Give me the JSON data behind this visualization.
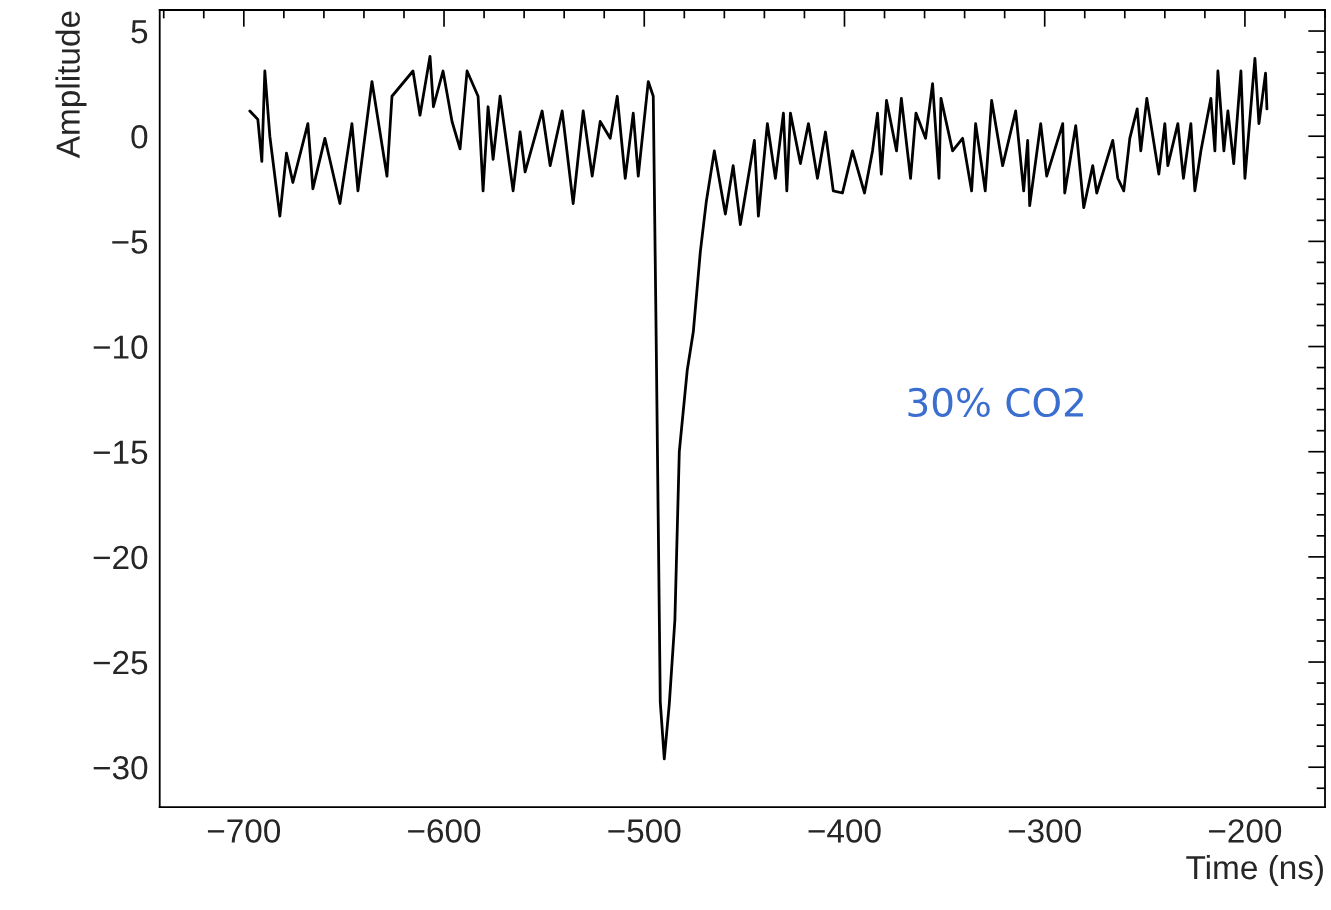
{
  "chart_data": {
    "type": "line",
    "xlabel": "Time (ns)",
    "ylabel": "Amplitude",
    "annotations": [
      "30% CO2"
    ],
    "xlim": [
      -742,
      -160
    ],
    "ylim": [
      -31.9,
      6
    ],
    "xticks": [
      {
        "value": -740,
        "label": null
      },
      {
        "value": -720,
        "label": null
      },
      -700,
      {
        "value": -680,
        "label": null
      },
      {
        "value": -660,
        "label": null
      },
      {
        "value": -640,
        "label": null
      },
      {
        "value": -620,
        "label": null
      },
      -600,
      {
        "value": -580,
        "label": null
      },
      {
        "value": -560,
        "label": null
      },
      {
        "value": -540,
        "label": null
      },
      {
        "value": -520,
        "label": null
      },
      -500,
      {
        "value": -480,
        "label": null
      },
      {
        "value": -460,
        "label": null
      },
      {
        "value": -440,
        "label": null
      },
      {
        "value": -420,
        "label": null
      },
      -400,
      {
        "value": -380,
        "label": null
      },
      {
        "value": -360,
        "label": null
      },
      {
        "value": -340,
        "label": null
      },
      {
        "value": -320,
        "label": null
      },
      -300,
      {
        "value": -280,
        "label": null
      },
      {
        "value": -260,
        "label": null
      },
      {
        "value": -240,
        "label": null
      },
      {
        "value": -220,
        "label": null
      },
      -200,
      {
        "value": -180,
        "label": null
      },
      {
        "value": -160,
        "label": null
      }
    ],
    "yticks": [
      {
        "value": -31,
        "label": null
      },
      -30,
      {
        "value": -29,
        "label": null
      },
      {
        "value": -28,
        "label": null
      },
      {
        "value": -27,
        "label": null
      },
      {
        "value": -26,
        "label": null
      },
      -25,
      {
        "value": -24,
        "label": null
      },
      {
        "value": -23,
        "label": null
      },
      {
        "value": -22,
        "label": null
      },
      {
        "value": -21,
        "label": null
      },
      -20,
      {
        "value": -19,
        "label": null
      },
      {
        "value": -18,
        "label": null
      },
      {
        "value": -17,
        "label": null
      },
      {
        "value": -16,
        "label": null
      },
      -15,
      {
        "value": -14,
        "label": null
      },
      {
        "value": -13,
        "label": null
      },
      {
        "value": -12,
        "label": null
      },
      {
        "value": -11,
        "label": null
      },
      -10,
      {
        "value": -9,
        "label": null
      },
      {
        "value": -8,
        "label": null
      },
      {
        "value": -7,
        "label": null
      },
      {
        "value": -6,
        "label": null
      },
      -5,
      {
        "value": -4,
        "label": null
      },
      {
        "value": -3,
        "label": null
      },
      {
        "value": -2,
        "label": null
      },
      {
        "value": -1,
        "label": null
      },
      0,
      {
        "value": 1,
        "label": null
      },
      {
        "value": 2,
        "label": null
      },
      {
        "value": 3,
        "label": null
      },
      {
        "value": 4,
        "label": null
      },
      5
    ],
    "grid": false,
    "series": [
      {
        "color": "#000000",
        "x": [
          -697,
          -693,
          -691,
          -689.5,
          -687,
          -682,
          -678.7,
          -675.5,
          -668,
          -665.5,
          -659.5,
          -652,
          -646,
          -643,
          -636,
          -628.5,
          -626,
          -615.5,
          -612,
          -607,
          -605.3,
          -600.5,
          -596,
          -592,
          -588.5,
          -583,
          -580.5,
          -578,
          -575.5,
          -572,
          -565.5,
          -562,
          -559.5,
          -551,
          -547,
          -541,
          -535.5,
          -530.5,
          -526,
          -522,
          -517,
          -513.5,
          -509.5,
          -505.5,
          -503,
          -498,
          -495.5,
          -494,
          -492,
          -490,
          -487.5,
          -484.7,
          -482.5,
          -478.5,
          -475.5,
          -472,
          -469,
          -465,
          -459.5,
          -455.6,
          -452,
          -445,
          -443,
          -438.5,
          -434.5,
          -430.5,
          -428.8,
          -427,
          -422,
          -418,
          -413.5,
          -409.5,
          -405.6,
          -401,
          -396,
          -390,
          -386,
          -383.5,
          -381.6,
          -379,
          -374,
          -371.6,
          -367,
          -364.3,
          -359.5,
          -356,
          -352.8,
          -351.8,
          -346,
          -341,
          -336.5,
          -334.5,
          -329.7,
          -326.5,
          -321,
          -314.5,
          -310.5,
          -308.5,
          -307.5,
          -302,
          -299,
          -291,
          -290,
          -284.5,
          -280.5,
          -276,
          -274,
          -266,
          -263.5,
          -260.5,
          -257.5,
          -253.8,
          -252,
          -249,
          -243,
          -240,
          -238.5,
          -233.5,
          -230.7,
          -227,
          -225,
          -222,
          -217,
          -215,
          -213.5,
          -210.5,
          -208.5,
          -205.6,
          -202,
          -200,
          -195,
          -193,
          -189.7,
          -189
        ],
        "values": [
          1.2,
          0.8,
          -1.2,
          3.1,
          0,
          -3.8,
          -0.8,
          -2.2,
          0.6,
          -2.5,
          -0.1,
          -3.2,
          0.6,
          -2.6,
          2.6,
          -1.9,
          1.9,
          3.1,
          1.0,
          3.8,
          1.4,
          3.1,
          0.7,
          -0.6,
          3.1,
          1.9,
          -2.6,
          1.4,
          -1.1,
          1.9,
          -2.6,
          0.2,
          -1.7,
          1.2,
          -1.4,
          1.2,
          -3.2,
          1.2,
          -1.9,
          0.7,
          -0.1,
          1.9,
          -2.0,
          1.1,
          -1.9,
          2.6,
          1.9,
          -10,
          -26.9,
          -29.6,
          -27,
          -23.0,
          -15.0,
          -11.1,
          -9.3,
          -5.5,
          -3.1,
          -0.7,
          -3.7,
          -1.4,
          -4.2,
          -0.2,
          -3.8,
          0.6,
          -2.0,
          1.1,
          -2.6,
          1.1,
          -1.3,
          0.6,
          -2.0,
          0.2,
          -2.6,
          -2.7,
          -0.7,
          -2.7,
          -0.7,
          1.1,
          -1.8,
          1.7,
          -0.7,
          1.8,
          -2.0,
          1.1,
          -0.1,
          2.5,
          -2.0,
          1.8,
          -0.7,
          -0.1,
          -2.6,
          0.6,
          -2.6,
          1.7,
          -1.4,
          1.2,
          -2.6,
          -0.2,
          -3.3,
          0.6,
          -1.9,
          0.6,
          -2.7,
          0.5,
          -3.4,
          -1.4,
          -2.7,
          -0.2,
          -2.0,
          -2.6,
          -0.1,
          1.3,
          -0.7,
          1.8,
          -1.8,
          0.6,
          -1.4,
          0.6,
          -2.0,
          0.6,
          -2.6,
          -0.7,
          1.8,
          -0.7,
          3.1,
          -0.7,
          1.2,
          -1.3,
          3.1,
          -2.0,
          3.7,
          0.6,
          3.0,
          1.3
        ]
      }
    ]
  }
}
